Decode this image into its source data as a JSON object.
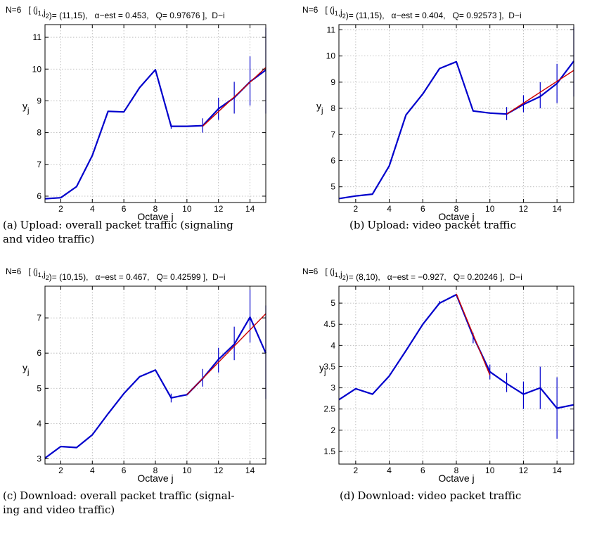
{
  "chart_data": [
    {
      "type": "line",
      "title": {
        "n": "N=6",
        "open": "[ (j",
        "sub1": "1",
        "comma": ",j",
        "sub2": "2",
        "range": ")= (11,15),",
        "alpha": "α−est = 0.453,",
        "q": "Q= 0.97676 ],",
        "tail": "D−i"
      },
      "xlabel": "Octave j",
      "ylabel": "y",
      "ylabel_sub": "j",
      "xlim": [
        1,
        15
      ],
      "ylim": [
        5.8,
        11.4
      ],
      "xticks": [
        "2",
        "4",
        "6",
        "8",
        "10",
        "12",
        "14"
      ],
      "yticks": [
        "6",
        "7",
        "8",
        "9",
        "10",
        "11"
      ],
      "grid": true,
      "x": [
        1,
        2,
        3,
        4,
        5,
        6,
        7,
        8,
        9,
        10,
        11,
        12,
        13,
        14,
        15
      ],
      "y": [
        5.92,
        5.95,
        6.3,
        7.28,
        8.67,
        8.65,
        9.42,
        9.98,
        8.2,
        8.2,
        8.22,
        8.75,
        9.1,
        9.6,
        9.97
      ],
      "errorbars": [
        {
          "x": 9,
          "lo": 8.12,
          "hi": 8.28
        },
        {
          "x": 11,
          "lo": 8.0,
          "hi": 8.45
        },
        {
          "x": 12,
          "lo": 8.4,
          "hi": 9.1
        },
        {
          "x": 13,
          "lo": 8.6,
          "hi": 9.6
        },
        {
          "x": 14,
          "lo": 8.85,
          "hi": 10.4
        },
        {
          "x": 15,
          "lo": 8.6,
          "hi": 11.3
        }
      ],
      "fit": {
        "x": [
          11,
          15
        ],
        "y": [
          8.2,
          10.05
        ]
      },
      "caption_label": "(a)",
      "caption_lines": [
        "Upload: overall packet traffic (signaling",
        "and video traffic)"
      ]
    },
    {
      "type": "line",
      "title": {
        "n": "N=6",
        "open": "[ (j",
        "sub1": "1",
        "comma": ",j",
        "sub2": "2",
        "range": ")= (11,15),",
        "alpha": "α−est = 0.404,",
        "q": "Q= 0.92573 ],",
        "tail": "D−i"
      },
      "xlabel": "Octave j",
      "ylabel": "y",
      "ylabel_sub": "j",
      "xlim": [
        1,
        15
      ],
      "ylim": [
        4.4,
        11.2
      ],
      "xticks": [
        "2",
        "4",
        "6",
        "8",
        "10",
        "12",
        "14"
      ],
      "yticks": [
        "5",
        "6",
        "7",
        "8",
        "9",
        "10",
        "11"
      ],
      "grid": true,
      "x": [
        1,
        2,
        3,
        4,
        5,
        6,
        7,
        8,
        9,
        10,
        11,
        12,
        13,
        14,
        15
      ],
      "y": [
        4.55,
        4.65,
        4.72,
        5.8,
        7.75,
        8.55,
        9.52,
        9.78,
        7.9,
        7.82,
        7.78,
        8.15,
        8.45,
        8.95,
        9.8
      ],
      "errorbars": [
        {
          "x": 11,
          "lo": 7.55,
          "hi": 8.05
        },
        {
          "x": 12,
          "lo": 7.85,
          "hi": 8.5
        },
        {
          "x": 13,
          "lo": 8.0,
          "hi": 9.0
        },
        {
          "x": 14,
          "lo": 8.2,
          "hi": 9.7
        },
        {
          "x": 15,
          "lo": 8.45,
          "hi": 11.1
        }
      ],
      "fit": {
        "x": [
          11,
          15
        ],
        "y": [
          7.78,
          9.45
        ]
      },
      "caption_label": "(b)",
      "caption_lines": [
        "Upload: video packet traffic"
      ]
    },
    {
      "type": "line",
      "title": {
        "n": "N=6",
        "open": "[ (j",
        "sub1": "1",
        "comma": ",j",
        "sub2": "2",
        "range": ")= (10,15),",
        "alpha": "α−est = 0.467,",
        "q": "Q= 0.42599 ],",
        "tail": "D−i"
      },
      "xlabel": "Octave j",
      "ylabel": "y",
      "ylabel_sub": "j",
      "xlim": [
        1,
        15
      ],
      "ylim": [
        2.85,
        7.9
      ],
      "xticks": [
        "2",
        "4",
        "6",
        "8",
        "10",
        "12",
        "14"
      ],
      "yticks": [
        "3",
        "4",
        "5",
        "6",
        "7"
      ],
      "grid": true,
      "x": [
        1,
        2,
        3,
        4,
        5,
        6,
        7,
        8,
        9,
        10,
        11,
        12,
        13,
        14,
        15
      ],
      "y": [
        3.02,
        3.35,
        3.32,
        3.68,
        4.28,
        4.85,
        5.33,
        5.52,
        4.73,
        4.82,
        5.28,
        5.82,
        6.25,
        7.02,
        6.0
      ],
      "errorbars": [
        {
          "x": 9,
          "lo": 4.6,
          "hi": 4.85
        },
        {
          "x": 11,
          "lo": 5.05,
          "hi": 5.55
        },
        {
          "x": 12,
          "lo": 5.45,
          "hi": 6.15
        },
        {
          "x": 13,
          "lo": 5.8,
          "hi": 6.75
        },
        {
          "x": 14,
          "lo": 6.3,
          "hi": 7.8
        },
        {
          "x": 15,
          "lo": 4.7,
          "hi": 7.35
        }
      ],
      "fit": {
        "x": [
          10,
          15
        ],
        "y": [
          4.82,
          7.12
        ]
      },
      "caption_label": "(c)",
      "caption_lines": [
        "Download: overall packet traffic (signal-",
        "ing and video traffic)"
      ]
    },
    {
      "type": "line",
      "title": {
        "n": "N=6",
        "open": "[ (j",
        "sub1": "1",
        "comma": ",j",
        "sub2": "2",
        "range": ")= (8,10),",
        "alpha": "α−est = −0.927,",
        "q": "Q= 0.20246 ],",
        "tail": "D−i"
      },
      "xlabel": "Octave j",
      "ylabel": "y",
      "ylabel_sub": "j",
      "xlim": [
        1,
        15
      ],
      "ylim": [
        1.2,
        5.4
      ],
      "xticks": [
        "2",
        "4",
        "6",
        "8",
        "10",
        "12",
        "14"
      ],
      "yticks": [
        "1.5",
        "2",
        "2.5",
        "3",
        "3.5",
        "4",
        "4.5",
        "5"
      ],
      "grid": true,
      "x": [
        1,
        2,
        3,
        4,
        5,
        6,
        7,
        8,
        9,
        10,
        11,
        12,
        13,
        14,
        15
      ],
      "y": [
        2.72,
        2.98,
        2.85,
        3.28,
        3.88,
        4.5,
        5.0,
        5.2,
        4.22,
        3.38,
        3.1,
        2.85,
        3.0,
        2.52,
        2.6
      ],
      "errorbars": [
        {
          "x": 7,
          "lo": 4.97,
          "hi": 5.05
        },
        {
          "x": 9,
          "lo": 4.05,
          "hi": 4.3
        },
        {
          "x": 10,
          "lo": 3.2,
          "hi": 3.55
        },
        {
          "x": 11,
          "lo": 2.9,
          "hi": 3.35
        },
        {
          "x": 12,
          "lo": 2.5,
          "hi": 3.15
        },
        {
          "x": 13,
          "lo": 2.5,
          "hi": 3.5
        },
        {
          "x": 14,
          "lo": 1.8,
          "hi": 3.25
        },
        {
          "x": 15,
          "lo": 1.3,
          "hi": 3.95
        }
      ],
      "fit": {
        "x": [
          8,
          10
        ],
        "y": [
          5.22,
          3.3
        ]
      },
      "caption_label": "(d)",
      "caption_lines": [
        "Download: video packet traffic"
      ]
    }
  ],
  "colors": {
    "series": "#0000cc",
    "fit": "#cc0000",
    "grid": "#b0b0b0",
    "axis": "#000000"
  }
}
